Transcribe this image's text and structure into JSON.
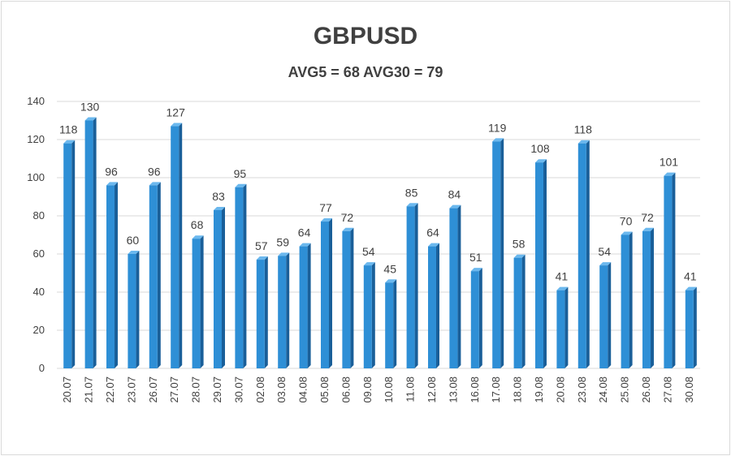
{
  "chart_data": {
    "type": "bar",
    "title": "GBPUSD",
    "subtitle": "AVG5 = 68 AVG30 = 79",
    "categories": [
      "20.07",
      "21.07",
      "22.07",
      "23.07",
      "26.07",
      "27.07",
      "28.07",
      "29.07",
      "30.07",
      "02.08",
      "03.08",
      "04.08",
      "05.08",
      "06.08",
      "09.08",
      "10.08",
      "11.08",
      "12.08",
      "13.08",
      "16.08",
      "17.08",
      "18.08",
      "19.08",
      "20.08",
      "23.08",
      "24.08",
      "25.08",
      "26.08",
      "27.08",
      "30.08"
    ],
    "values": [
      118,
      130,
      96,
      60,
      96,
      127,
      68,
      83,
      95,
      57,
      59,
      64,
      77,
      72,
      54,
      45,
      85,
      64,
      84,
      51,
      119,
      58,
      108,
      41,
      118,
      54,
      70,
      72,
      101,
      41
    ],
    "ylim": [
      0,
      140
    ],
    "yticks": [
      0,
      20,
      40,
      60,
      80,
      100,
      120,
      140
    ],
    "grid": true,
    "legend": "none",
    "colors": {
      "bar": "#2e8fd6",
      "bar_dark": "#1a5f99",
      "bar_light": "#6bb8ee",
      "grid": "#d9d9d9"
    }
  }
}
